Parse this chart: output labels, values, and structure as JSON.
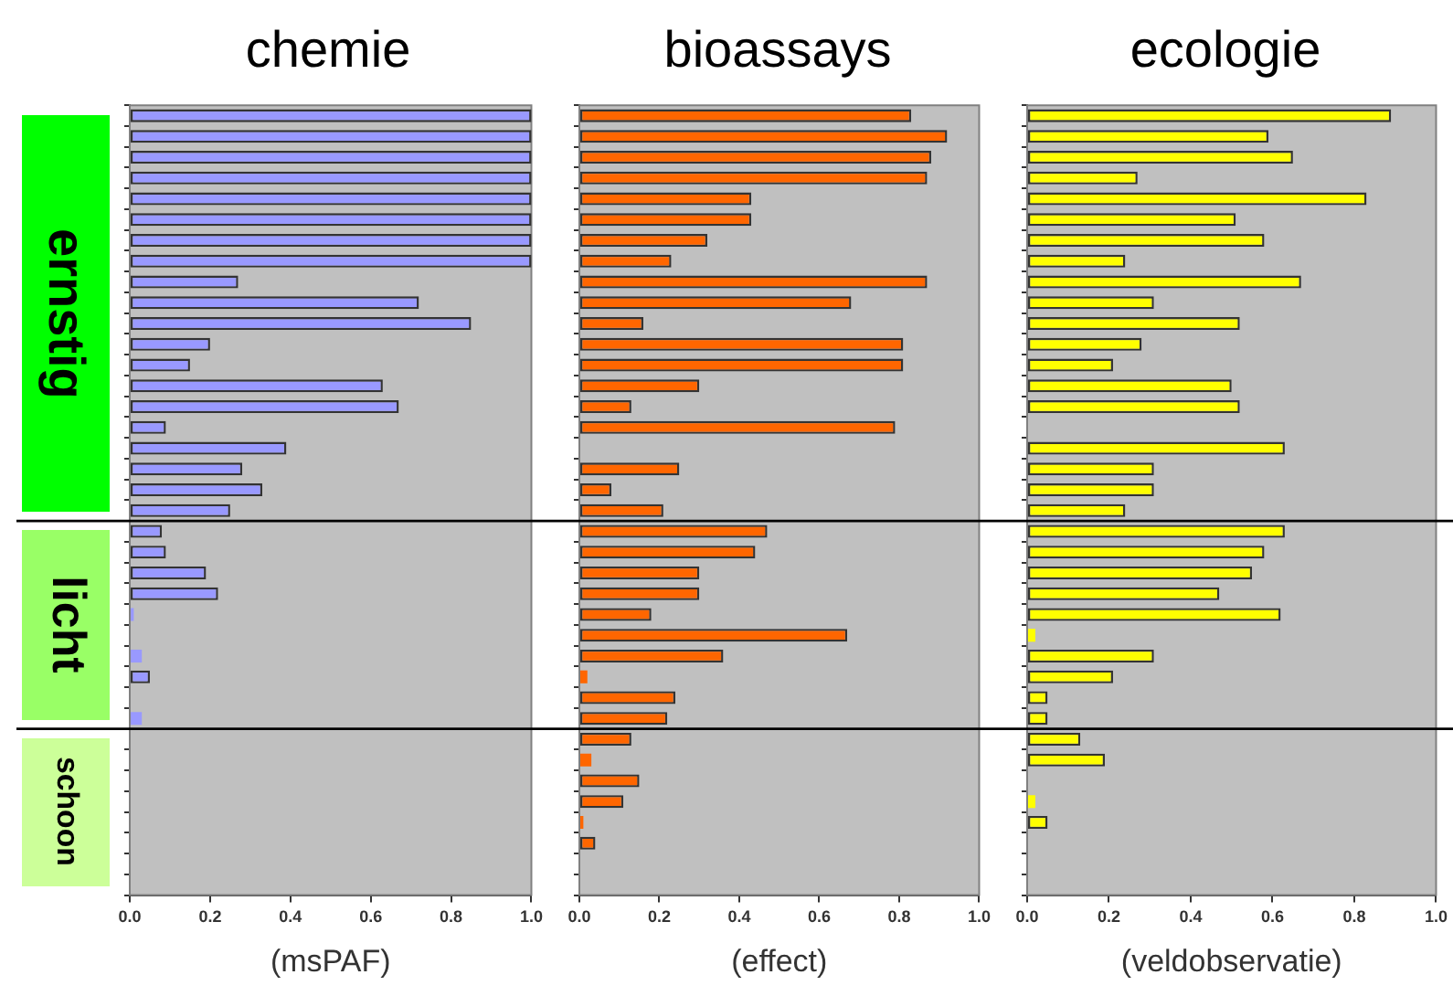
{
  "chart_data": [
    {
      "type": "bar",
      "orientation": "horizontal",
      "title": "chemie",
      "xlabel": "(msPAF)",
      "categories": [
        null,
        null,
        null,
        null,
        null,
        null,
        null,
        null,
        null,
        null,
        null,
        null,
        null,
        null,
        null,
        null,
        null,
        null,
        null,
        null,
        null,
        null,
        null,
        null,
        null,
        null,
        null,
        null,
        null,
        null,
        null,
        null,
        null,
        null,
        null,
        null,
        null,
        null
      ],
      "series": [
        {
          "color": "#9999ff",
          "values": [
            1.0,
            1.0,
            1.0,
            1.0,
            1.0,
            1.0,
            1.0,
            1.0,
            0.27,
            0.72,
            0.85,
            0.2,
            0.15,
            0.63,
            0.67,
            0.09,
            0.39,
            0.28,
            0.33,
            0.25,
            0.08,
            0.09,
            0.19,
            0.22,
            0.01,
            null,
            0.03,
            0.05,
            null,
            0.03,
            null,
            null,
            null,
            null,
            null,
            null,
            null,
            null
          ]
        }
      ],
      "xlim": [
        0,
        1
      ],
      "xticks": [
        {
          "value": 0,
          "label": "0.0"
        },
        {
          "value": 0.2,
          "label": "0.2"
        },
        {
          "value": 0.4,
          "label": "0.4"
        },
        {
          "value": 0.6,
          "label": "0.6"
        },
        {
          "value": 0.8,
          "label": "0.8"
        },
        {
          "value": 1,
          "label": "1.0"
        }
      ],
      "annotations": [
        "ernstig",
        "licht",
        "schoon"
      ],
      "grid": false,
      "legend": false,
      "tick_labels": "x"
    },
    {
      "type": "bar",
      "orientation": "horizontal",
      "title": "bioassays",
      "xlabel": "(effect)",
      "categories": [
        null,
        null,
        null,
        null,
        null,
        null,
        null,
        null,
        null,
        null,
        null,
        null,
        null,
        null,
        null,
        null,
        null,
        null,
        null,
        null,
        null,
        null,
        null,
        null,
        null,
        null,
        null,
        null,
        null,
        null,
        null,
        null,
        null,
        null,
        null,
        null,
        null,
        null
      ],
      "series": [
        {
          "color": "#ff6600",
          "values": [
            0.83,
            0.92,
            0.88,
            0.87,
            0.43,
            0.43,
            0.32,
            0.23,
            0.87,
            0.68,
            0.16,
            0.81,
            0.81,
            0.3,
            0.13,
            0.79,
            null,
            0.25,
            0.08,
            0.21,
            0.47,
            0.44,
            0.3,
            0.3,
            0.18,
            0.67,
            0.36,
            0.02,
            0.24,
            0.22,
            0.13,
            0.03,
            0.15,
            0.11,
            0.01,
            0.04,
            null,
            null
          ]
        }
      ],
      "xlim": [
        0,
        1
      ],
      "xticks": [
        {
          "value": 0,
          "label": "0.0"
        },
        {
          "value": 0.2,
          "label": "0.2"
        },
        {
          "value": 0.4,
          "label": "0.4"
        },
        {
          "value": 0.6,
          "label": "0.6"
        },
        {
          "value": 0.8,
          "label": "0.8"
        },
        {
          "value": 1,
          "label": "1.0"
        }
      ],
      "grid": false,
      "legend": false,
      "tick_labels": "x"
    },
    {
      "type": "bar",
      "orientation": "horizontal",
      "title": "ecologie",
      "xlabel": "(veldobservatie)",
      "categories": [
        null,
        null,
        null,
        null,
        null,
        null,
        null,
        null,
        null,
        null,
        null,
        null,
        null,
        null,
        null,
        null,
        null,
        null,
        null,
        null,
        null,
        null,
        null,
        null,
        null,
        null,
        null,
        null,
        null,
        null,
        null,
        null,
        null,
        null,
        null,
        null,
        null,
        null
      ],
      "series": [
        {
          "color": "#ffff00",
          "values": [
            0.89,
            0.59,
            0.65,
            0.27,
            0.83,
            0.51,
            0.58,
            0.24,
            0.67,
            0.31,
            0.52,
            0.28,
            0.21,
            0.5,
            0.52,
            null,
            0.63,
            0.31,
            0.31,
            0.24,
            0.63,
            0.58,
            0.55,
            0.47,
            0.62,
            0.02,
            0.31,
            0.21,
            0.05,
            0.05,
            0.13,
            0.19,
            null,
            0.02,
            0.05,
            null,
            null,
            null
          ]
        }
      ],
      "xlim": [
        0,
        1
      ],
      "xticks": [
        {
          "value": 0,
          "label": "0.0"
        },
        {
          "value": 0.2,
          "label": "0.2"
        },
        {
          "value": 0.4,
          "label": "0.4"
        },
        {
          "value": 0.6,
          "label": "0.6"
        },
        {
          "value": 0.8,
          "label": "0.8"
        },
        {
          "value": 1,
          "label": "1.0"
        }
      ],
      "grid": false,
      "legend": false,
      "tick_labels": "x"
    }
  ]
}
